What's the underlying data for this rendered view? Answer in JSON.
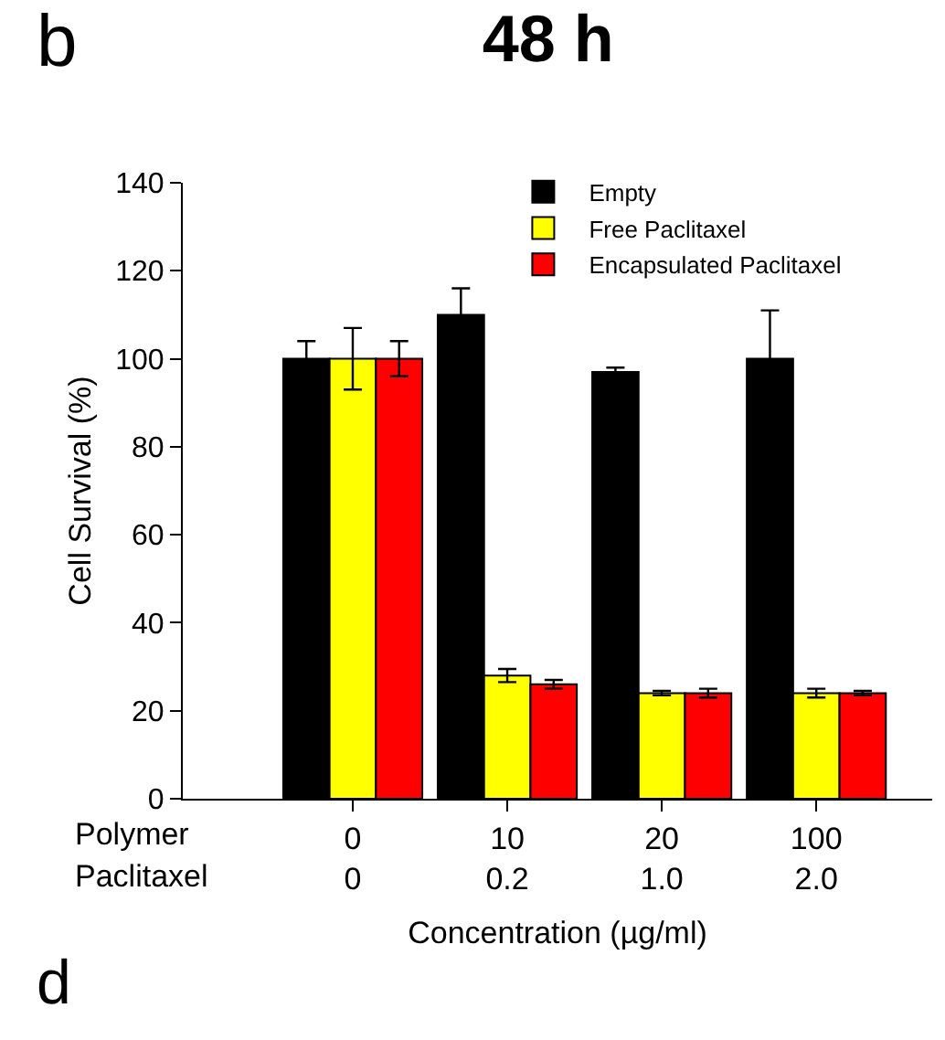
{
  "chart_data": {
    "type": "bar",
    "title": "48 h",
    "xlabel": "Concentration (µg/ml)",
    "ylabel": "Cell Survival (%)",
    "annotations": [
      "b",
      "Polymer",
      "Paclitaxel",
      "d"
    ],
    "categories": [
      "0\n0",
      "10\n0.2",
      "20\n1.0",
      "100\n2.0"
    ],
    "series": [
      {
        "name": "Empty",
        "color": "#000000",
        "values": [
          100,
          110,
          97,
          100
        ],
        "errors": [
          4,
          6,
          1,
          11
        ]
      },
      {
        "name": "Free Paclitaxel",
        "color": "#ffff00",
        "values": [
          100,
          28,
          24,
          24
        ],
        "errors": [
          7,
          1.5,
          0.5,
          1
        ]
      },
      {
        "name": "Encapsulated Paclitaxel",
        "color": "#ff0000",
        "values": [
          100,
          26,
          24,
          24
        ],
        "errors": [
          4,
          1,
          1,
          0.5
        ]
      }
    ],
    "ylim": [
      0,
      140
    ],
    "yticks": [
      0,
      20,
      40,
      60,
      80,
      100,
      120,
      140
    ],
    "grid": false,
    "legend": "top right"
  }
}
